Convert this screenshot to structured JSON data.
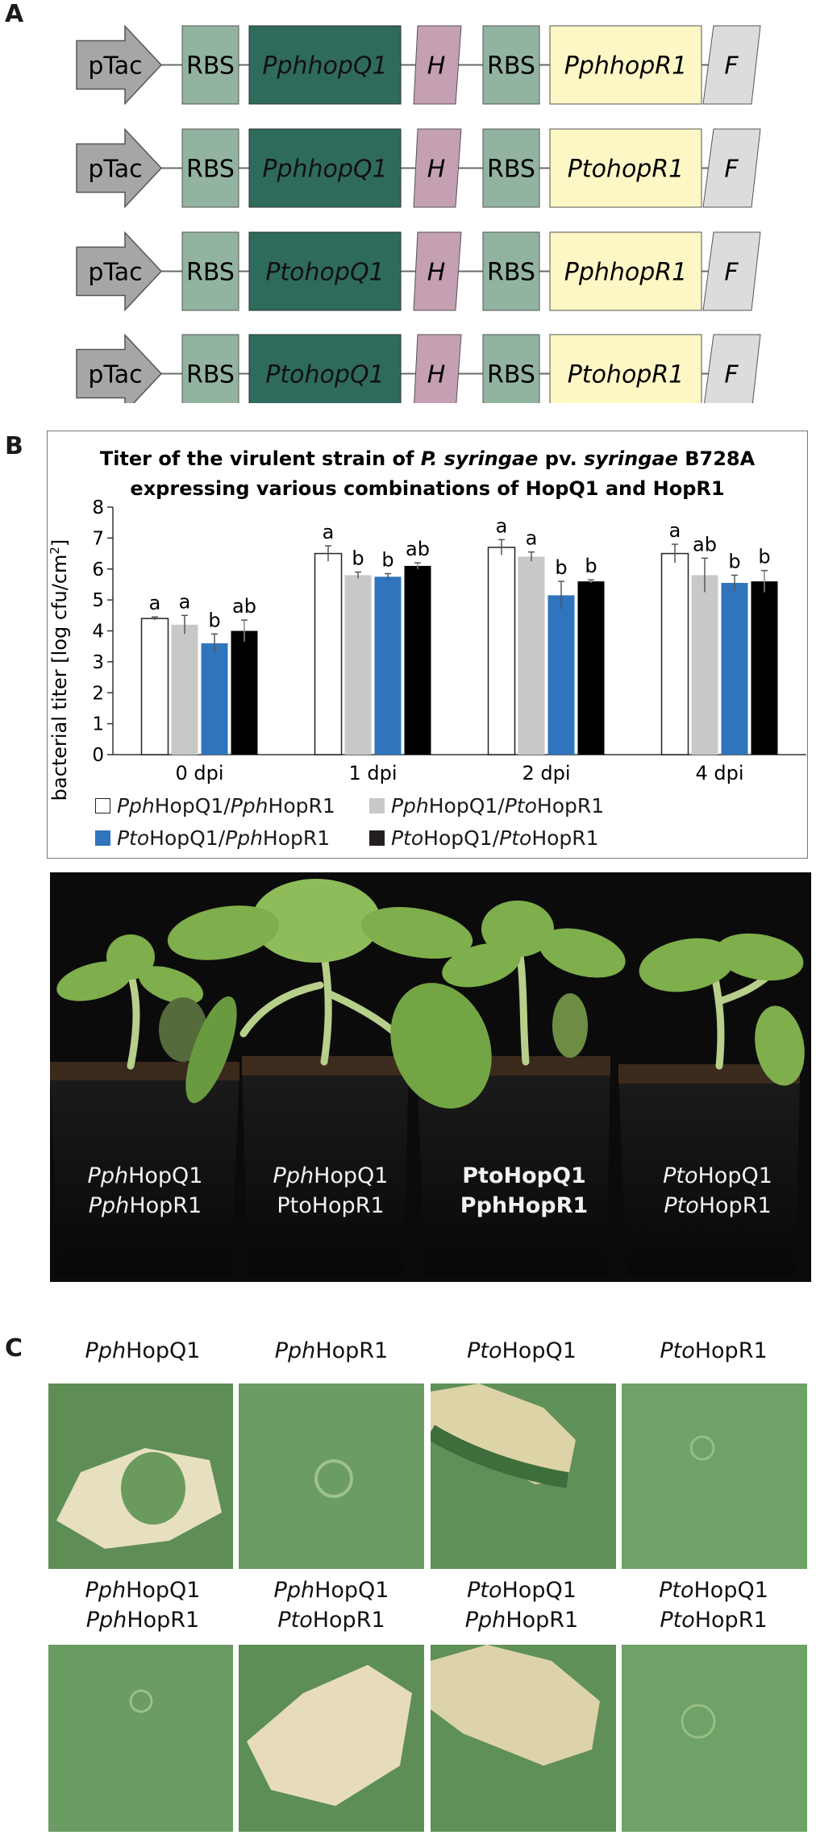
{
  "panels": {
    "a": "A",
    "b": "B",
    "c": "C"
  },
  "constructs": [
    {
      "promoter": "pTac",
      "rbs1": "RBS",
      "gene1": "PphhopQ1",
      "tag1": "H",
      "rbs2": "RBS",
      "gene2": "PphhopR1",
      "tag2": "F"
    },
    {
      "promoter": "pTac",
      "rbs1": "RBS",
      "gene1": "PphhopQ1",
      "tag1": "H",
      "rbs2": "RBS",
      "gene2": "PtohopR1",
      "tag2": "F"
    },
    {
      "promoter": "pTac",
      "rbs1": "RBS",
      "gene1": "PtohopQ1",
      "tag1": "H",
      "rbs2": "RBS",
      "gene2": "PphhopR1",
      "tag2": "F"
    },
    {
      "promoter": "pTac",
      "rbs1": "RBS",
      "gene1": "PtohopQ1",
      "tag1": "H",
      "rbs2": "RBS",
      "gene2": "PtohopR1",
      "tag2": "F"
    }
  ],
  "colors": {
    "promoter": "#a6a6a6",
    "rbs": "#93b3a1",
    "gene1": "#2f6b5c",
    "tag1": "#c59fb2",
    "gene2": "#fcf7c5",
    "tag2": "#dcdcdc",
    "s1": "#ffffff",
    "s2": "#c8c8c8",
    "s3": "#2f74bc",
    "s4": "#000000"
  },
  "chart_data": {
    "type": "bar",
    "title_parts": [
      "Titer of the virulent strain of ",
      "P. syringae",
      " pv. ",
      "syringae",
      " B728A"
    ],
    "title_line2": "expressing various combinations of HopQ1 and HopR1",
    "ylabel": "bacterial titer [log cfu/cm",
    "ylabel_sup": "2",
    "ylabel_end": "]",
    "ylim": [
      0,
      8
    ],
    "yticks": [
      "0",
      "1",
      "2",
      "3",
      "4",
      "5",
      "6",
      "7",
      "8"
    ],
    "categories": [
      "0 dpi",
      "1 dpi",
      "2 dpi",
      "4 dpi"
    ],
    "series": [
      {
        "prefix": "Pph",
        "mid": "HopQ1/",
        "prefix2": "Pph",
        "suffix": "HopR1",
        "values": [
          4.4,
          6.5,
          6.7,
          6.5
        ],
        "errors": [
          0.05,
          0.25,
          0.25,
          0.3
        ],
        "letters": [
          "a",
          "a",
          "a",
          "a"
        ]
      },
      {
        "prefix": "Pph",
        "mid": "HopQ1/",
        "prefix2": "Pto",
        "suffix": "HopR1",
        "values": [
          4.2,
          5.8,
          6.4,
          5.8
        ],
        "errors": [
          0.3,
          0.1,
          0.15,
          0.55
        ],
        "letters": [
          "a",
          "b",
          "a",
          "ab"
        ]
      },
      {
        "prefix": "Pto",
        "mid": "HopQ1/",
        "prefix2": "Pph",
        "suffix": "HopR1",
        "values": [
          3.6,
          5.75,
          5.15,
          5.55
        ],
        "errors": [
          0.3,
          0.1,
          0.45,
          0.25
        ],
        "letters": [
          "b",
          "b",
          "b",
          "b"
        ]
      },
      {
        "prefix": "Pto",
        "mid": "HopQ1/",
        "prefix2": "Pto",
        "suffix": "HopR1",
        "values": [
          4.0,
          6.1,
          5.6,
          5.6
        ],
        "errors": [
          0.35,
          0.1,
          0.05,
          0.35
        ],
        "letters": [
          "ab",
          "ab",
          "b",
          "b"
        ]
      }
    ]
  },
  "plant_labels": [
    {
      "q_pre": "Pph",
      "q_suf": "HopQ1",
      "r_pre": "Pph",
      "r_suf": "HopR1"
    },
    {
      "q_pre": "Pph",
      "q_suf": "HopQ1",
      "r_pre": "Pto",
      "r_suf": "HopR1"
    },
    {
      "q_pre": "Pto",
      "q_suf": "HopQ1",
      "r_pre": "Pph",
      "r_suf": "HopR1"
    },
    {
      "q_pre": "Pto",
      "q_suf": "HopQ1",
      "r_pre": "Pto",
      "r_suf": "HopR1"
    }
  ],
  "leaf_top_labels": [
    {
      "pre": "Pph",
      "suf": "HopQ1"
    },
    {
      "pre": "Pph",
      "suf": "HopR1"
    },
    {
      "pre": "Pto",
      "suf": "HopQ1"
    },
    {
      "pre": "Pto",
      "suf": "HopR1"
    }
  ],
  "leaf_bottom_labels": [
    {
      "q_pre": "Pph",
      "q_suf": "HopQ1",
      "r_pre": "Pph",
      "r_suf": "HopR1"
    },
    {
      "q_pre": "Pph",
      "q_suf": "HopQ1",
      "r_pre": "Pto",
      "r_suf": "HopR1"
    },
    {
      "q_pre": "Pto",
      "q_suf": "HopQ1",
      "r_pre": "Pph",
      "r_suf": "HopR1"
    },
    {
      "q_pre": "Pto",
      "q_suf": "HopQ1",
      "r_pre": "Pto",
      "r_suf": "HopR1"
    }
  ]
}
